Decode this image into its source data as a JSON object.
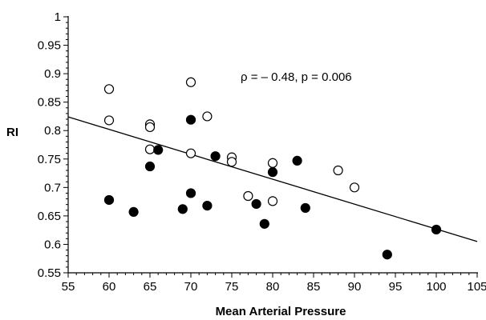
{
  "chart_data": {
    "type": "scatter",
    "title": "",
    "xlabel": "Mean Arterial Pressure",
    "ylabel": "RI",
    "xlim": [
      55,
      105
    ],
    "ylim": [
      0.55,
      1
    ],
    "x_ticks": [
      "55",
      "60",
      "65",
      "70",
      "75",
      "80",
      "85",
      "90",
      "95",
      "100",
      "105"
    ],
    "y_ticks": [
      "0.55",
      "0.6",
      "0.65",
      "0.7",
      "0.75",
      "0.8",
      "0.85",
      "0.9",
      "0.95",
      "1"
    ],
    "grid": false,
    "annotation": "ρ = – 0.48, p = 0.006",
    "series": [
      {
        "marker": "open-circle",
        "points": [
          [
            60,
            0.873
          ],
          [
            60,
            0.818
          ],
          [
            65,
            0.811
          ],
          [
            65,
            0.806
          ],
          [
            65,
            0.767
          ],
          [
            70,
            0.885
          ],
          [
            70,
            0.76
          ],
          [
            72,
            0.825
          ],
          [
            75,
            0.753
          ],
          [
            75,
            0.745
          ],
          [
            77,
            0.685
          ],
          [
            80,
            0.743
          ],
          [
            80,
            0.676
          ],
          [
            88,
            0.73
          ],
          [
            90,
            0.7
          ]
        ]
      },
      {
        "marker": "filled-circle",
        "points": [
          [
            60,
            0.678
          ],
          [
            63,
            0.657
          ],
          [
            65,
            0.737
          ],
          [
            66,
            0.766
          ],
          [
            69,
            0.662
          ],
          [
            70,
            0.819
          ],
          [
            70,
            0.69
          ],
          [
            72,
            0.668
          ],
          [
            73,
            0.755
          ],
          [
            78,
            0.671
          ],
          [
            79,
            0.636
          ],
          [
            80,
            0.727
          ],
          [
            83,
            0.747
          ],
          [
            84,
            0.664
          ],
          [
            94,
            0.582
          ],
          [
            100,
            0.626
          ]
        ]
      }
    ],
    "trendline": {
      "start": [
        55,
        0.824
      ],
      "end": [
        105,
        0.605
      ]
    }
  }
}
